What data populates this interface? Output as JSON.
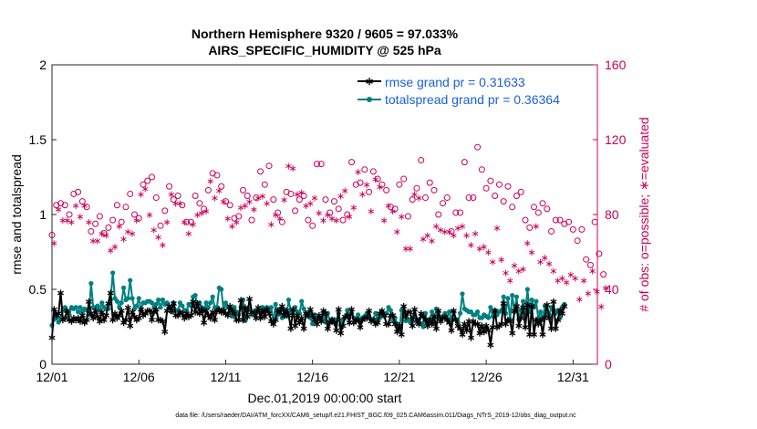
{
  "chart_data": {
    "type": "line",
    "title_line1": "Northern Hemisphere 9320 / 9605 = 97.033%",
    "title_line2": "AIRS_SPECIFIC_HUMIDITY @ 525 hPa",
    "xlabel": "Dec.01,2019 00:00:00 start",
    "ylabel_left": "rmse and totalspread",
    "ylabel_right": "# of obs: o=possible; ∗=evaluated",
    "footer": "data file: /Users/raeder/DAI/ATM_forcXX/CAM6_setup/f.e21.FHIST_BGC.f09_025.CAM6assim.011/Diags_NTrS_2019-12/obs_diag_output.nc",
    "xlim": [
      0,
      31.4
    ],
    "ylim_left": [
      0,
      2
    ],
    "ylim_right": [
      0,
      160
    ],
    "x_ticks": [
      {
        "value": 0,
        "label": "12/01"
      },
      {
        "value": 5,
        "label": "12/06"
      },
      {
        "value": 10,
        "label": "12/11"
      },
      {
        "value": 15,
        "label": "12/16"
      },
      {
        "value": 20,
        "label": "12/21"
      },
      {
        "value": 25,
        "label": "12/26"
      },
      {
        "value": 30,
        "label": "12/31"
      }
    ],
    "y_ticks_left": [
      {
        "value": 0,
        "label": "0"
      },
      {
        "value": 0.5,
        "label": "0.5"
      },
      {
        "value": 1,
        "label": "1"
      },
      {
        "value": 1.5,
        "label": "1.5"
      },
      {
        "value": 2,
        "label": "2"
      }
    ],
    "y_ticks_right": [
      {
        "value": 0,
        "label": "0"
      },
      {
        "value": 40,
        "label": "40"
      },
      {
        "value": 80,
        "label": "80"
      },
      {
        "value": 120,
        "label": "120"
      },
      {
        "value": 160,
        "label": "160"
      }
    ],
    "x_step": 0.125,
    "series": [
      {
        "name": "rmse grand pr = 0.31633",
        "color": "#000000",
        "axis": "left",
        "values": [
          0.18,
          0.37,
          0.33,
          0.34,
          0.48,
          0.3,
          0.31,
          0.36,
          0.3,
          0.29,
          0.31,
          0.3,
          0.31,
          0.29,
          0.33,
          0.28,
          0.3,
          0.42,
          0.34,
          0.31,
          0.36,
          0.32,
          0.29,
          0.35,
          0.3,
          0.33,
          0.41,
          0.48,
          0.3,
          0.34,
          0.31,
          0.33,
          0.36,
          0.28,
          0.3,
          0.38,
          0.26,
          0.35,
          0.32,
          0.3,
          0.31,
          0.37,
          0.33,
          0.34,
          0.36,
          0.36,
          0.3,
          0.35,
          0.37,
          0.3,
          0.3,
          0.29,
          0.22,
          0.36,
          0.39,
          0.36,
          0.41,
          0.33,
          0.33,
          0.35,
          0.34,
          0.31,
          0.34,
          0.32,
          0.33,
          0.42,
          0.35,
          0.41,
          0.34,
          0.37,
          0.28,
          0.36,
          0.33,
          0.31,
          0.35,
          0.3,
          0.36,
          0.37,
          0.35,
          0.36,
          0.34,
          0.33,
          0.39,
          0.36,
          0.34,
          0.3,
          0.3,
          0.43,
          0.3,
          0.38,
          0.32,
          0.44,
          0.35,
          0.35,
          0.31,
          0.38,
          0.31,
          0.36,
          0.32,
          0.37,
          0.34,
          0.29,
          0.27,
          0.3,
          0.36,
          0.35,
          0.39,
          0.33,
          0.36,
          0.33,
          0.24,
          0.37,
          0.26,
          0.33,
          0.28,
          0.31,
          0.24,
          0.34,
          0.33,
          0.37,
          0.33,
          0.3,
          0.27,
          0.33,
          0.29,
          0.36,
          0.34,
          0.24,
          0.28,
          0.3,
          0.28,
          0.23,
          0.37,
          0.21,
          0.26,
          0.32,
          0.33,
          0.28,
          0.37,
          0.28,
          0.3,
          0.3,
          0.25,
          0.3,
          0.31,
          0.31,
          0.36,
          0.29,
          0.3,
          0.27,
          0.28,
          0.34,
          0.36,
          0.33,
          0.27,
          0.27,
          0.33,
          0.33,
          0.27,
          0.22,
          0.26,
          0.2,
          0.39,
          0.32,
          0.35,
          0.35,
          0.26,
          0.37,
          0.3,
          0.27,
          0.34,
          0.32,
          0.3,
          0.26,
          0.3,
          0.27,
          0.32,
          0.24,
          0.36,
          0.29,
          0.31,
          0.32,
          0.3,
          0.28,
          0.23,
          0.36,
          0.3,
          0.26,
          0.24,
          0.2,
          0.27,
          0.23,
          0.29,
          0.18,
          0.29,
          0.27,
          0.27,
          0.21,
          0.26,
          0.22,
          0.26,
          0.23,
          0.13,
          0.25,
          0.36,
          0.25,
          0.26,
          0.27,
          0.41,
          0.27,
          0.3,
          0.29,
          0.21,
          0.36,
          0.39,
          0.26,
          0.31,
          0.38,
          0.25,
          0.4,
          0.2,
          0.39,
          0.2,
          0.3,
          0.27,
          0.3,
          0.2,
          0.31,
          0.4,
          0.31,
          0.24,
          0.42,
          0.24,
          0.3,
          0.36,
          0.34,
          0.39
        ]
      },
      {
        "name": "totalspread grand pr = 0.36364",
        "color": "#008080",
        "axis": "left",
        "values": [
          0.26,
          0.3,
          0.31,
          0.28,
          0.31,
          0.36,
          0.38,
          0.35,
          0.33,
          0.38,
          0.37,
          0.38,
          0.35,
          0.38,
          0.35,
          0.37,
          0.36,
          0.33,
          0.54,
          0.38,
          0.38,
          0.39,
          0.36,
          0.41,
          0.38,
          0.37,
          0.37,
          0.43,
          0.61,
          0.44,
          0.42,
          0.38,
          0.41,
          0.51,
          0.43,
          0.44,
          0.56,
          0.44,
          0.37,
          0.39,
          0.44,
          0.36,
          0.41,
          0.41,
          0.42,
          0.42,
          0.41,
          0.38,
          0.4,
          0.43,
          0.38,
          0.43,
          0.4,
          0.41,
          0.38,
          0.35,
          0.41,
          0.36,
          0.36,
          0.41,
          0.39,
          0.36,
          0.36,
          0.4,
          0.39,
          0.45,
          0.46,
          0.38,
          0.41,
          0.38,
          0.36,
          0.41,
          0.38,
          0.41,
          0.45,
          0.38,
          0.38,
          0.51,
          0.5,
          0.36,
          0.41,
          0.38,
          0.35,
          0.32,
          0.38,
          0.35,
          0.33,
          0.38,
          0.43,
          0.29,
          0.37,
          0.37,
          0.33,
          0.33,
          0.36,
          0.36,
          0.34,
          0.38,
          0.36,
          0.38,
          0.36,
          0.38,
          0.28,
          0.4,
          0.33,
          0.37,
          0.31,
          0.36,
          0.32,
          0.43,
          0.35,
          0.36,
          0.38,
          0.35,
          0.34,
          0.42,
          0.37,
          0.34,
          0.32,
          0.31,
          0.27,
          0.33,
          0.3,
          0.31,
          0.29,
          0.32,
          0.28,
          0.34,
          0.29,
          0.3,
          0.3,
          0.29,
          0.34,
          0.26,
          0.3,
          0.31,
          0.36,
          0.33,
          0.34,
          0.31,
          0.29,
          0.33,
          0.28,
          0.31,
          0.32,
          0.34,
          0.32,
          0.3,
          0.3,
          0.34,
          0.3,
          0.31,
          0.35,
          0.32,
          0.34,
          0.38,
          0.36,
          0.29,
          0.31,
          0.27,
          0.23,
          0.36,
          0.36,
          0.29,
          0.3,
          0.28,
          0.31,
          0.32,
          0.28,
          0.3,
          0.27,
          0.25,
          0.34,
          0.27,
          0.3,
          0.35,
          0.27,
          0.37,
          0.31,
          0.31,
          0.32,
          0.34,
          0.31,
          0.35,
          0.3,
          0.35,
          0.3,
          0.28,
          0.34,
          0.47,
          0.37,
          0.36,
          0.35,
          0.35,
          0.33,
          0.33,
          0.35,
          0.31,
          0.31,
          0.33,
          0.32,
          0.31,
          0.38,
          0.32,
          0.36,
          0.33,
          0.35,
          0.36,
          0.45,
          0.34,
          0.44,
          0.3,
          0.46,
          0.35,
          0.45,
          0.3,
          0.36,
          0.42,
          0.34,
          0.5,
          0.35,
          0.43,
          0.38,
          0.42,
          0.3,
          0.35,
          0.3,
          0.39,
          0.33,
          0.33,
          0.38,
          0.36,
          0.34,
          0.36,
          0.31,
          0.38,
          0.4
        ]
      }
    ],
    "obs_x_step": 0.25,
    "obs_color": "#cc0055",
    "obs_possible": [
      69,
      85,
      86,
      85,
      80,
      91,
      92,
      87,
      84,
      71,
      75,
      79,
      70,
      73,
      77,
      85,
      76,
      84,
      91,
      80,
      78,
      96,
      98,
      100,
      89,
      74,
      82,
      95,
      88,
      90,
      85,
      76,
      76,
      90,
      86,
      83,
      93,
      102,
      101,
      95,
      87,
      85,
      78,
      79,
      93,
      90,
      77,
      89,
      103,
      96,
      106,
      88,
      81,
      76,
      92,
      91,
      82,
      88,
      90,
      77,
      74,
      107,
      107,
      88,
      81,
      87,
      83,
      77,
      80,
      108,
      96,
      97,
      104,
      92,
      103,
      99,
      96,
      93,
      84,
      83,
      96,
      99,
      79,
      88,
      94,
      109,
      89,
      97,
      93,
      80,
      86,
      89,
      71,
      81,
      81,
      108,
      89,
      89,
      116,
      104,
      94,
      98,
      90,
      96,
      87,
      95,
      84,
      90,
      92,
      77,
      73,
      84,
      81,
      86,
      83,
      71,
      77,
      77,
      75,
      76,
      72,
      66,
      72,
      56,
      53,
      76,
      59,
      48
    ],
    "obs_evaluated": [
      65,
      83,
      77,
      77,
      76,
      85,
      79,
      85,
      76,
      66,
      66,
      70,
      69,
      61,
      63,
      74,
      67,
      71,
      70,
      77,
      91,
      94,
      80,
      72,
      68,
      64,
      76,
      91,
      86,
      86,
      76,
      70,
      75,
      80,
      81,
      82,
      98,
      89,
      93,
      87,
      78,
      74,
      76,
      84,
      85,
      87,
      83,
      89,
      90,
      86,
      75,
      80,
      78,
      88,
      106,
      105,
      91,
      92,
      85,
      86,
      89,
      81,
      77,
      80,
      78,
      77,
      90,
      93,
      79,
      84,
      103,
      91,
      96,
      82,
      99,
      95,
      77,
      85,
      82,
      71,
      79,
      62,
      62,
      91,
      89,
      67,
      69,
      66,
      74,
      72,
      71,
      71,
      69,
      73,
      74,
      69,
      64,
      70,
      62,
      63,
      60,
      55,
      73,
      56,
      49,
      45,
      53,
      50,
      51,
      65,
      60,
      74,
      55,
      57,
      54,
      50,
      45,
      46,
      44,
      48,
      46,
      35,
      45,
      38,
      50,
      39,
      31,
      41
    ]
  }
}
